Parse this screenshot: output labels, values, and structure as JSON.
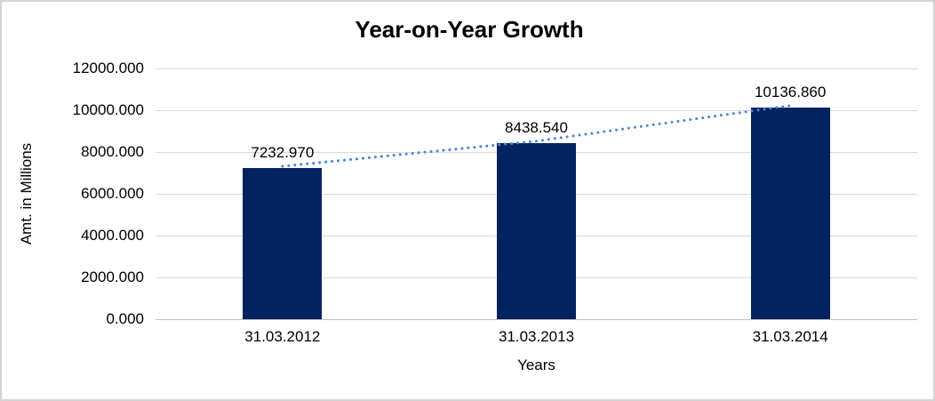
{
  "chart_data": {
    "type": "bar",
    "title": "Year-on-Year Growth",
    "categories": [
      "31.03.2012",
      "31.03.2013",
      "31.03.2014"
    ],
    "values": [
      7232.97,
      8438.54,
      10136.86
    ],
    "value_labels": [
      "7232.970",
      "8438.540",
      "10136.860"
    ],
    "xlabel": "Years",
    "ylabel": "Amt. in Millions",
    "ylim": [
      0,
      12000
    ],
    "yticks": [
      0,
      2000,
      4000,
      6000,
      8000,
      10000,
      12000
    ],
    "ytick_labels": [
      "0.000",
      "2000.000",
      "4000.000",
      "6000.000",
      "8000.000",
      "10000.000",
      "12000.000"
    ],
    "grid": true,
    "legend_position": "none",
    "colors": {
      "bar_fill": "#022260",
      "trendline": "#4a86d0",
      "gridline": "#d9d9d9",
      "axis_line": "#bfbfbf",
      "text": "#000000",
      "border": "#d3d3d3",
      "background": "#ffffff"
    },
    "trendline": {
      "style": "dotted",
      "connects": "bar tops (same values as bars)"
    }
  }
}
